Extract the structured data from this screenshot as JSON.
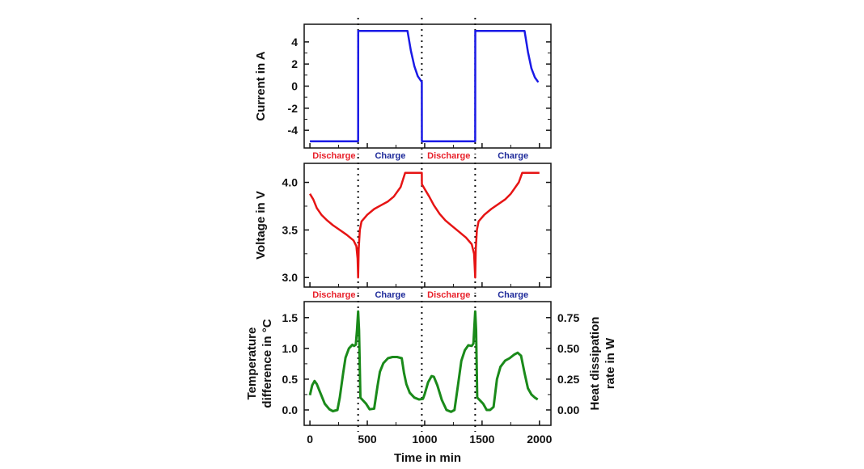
{
  "colors": {
    "current": "#1a1ae6",
    "voltage": "#e61414",
    "temperature": "#1a8a1a",
    "discharge": "#e8202a",
    "charge": "#1e2a9a",
    "axis": "#111111"
  },
  "chart_data": [
    {
      "type": "line",
      "id": "current",
      "ylabel": "Current in A",
      "xlim": [
        -50,
        2100
      ],
      "ylim": [
        -5.6,
        5.6
      ],
      "yticks": [
        -4,
        -2,
        0,
        2,
        4
      ],
      "ytick_labels": [
        "-4",
        "-2",
        "0",
        "2",
        "4"
      ],
      "x": [
        0,
        420,
        421,
        850,
        880,
        910,
        940,
        970,
        975,
        976,
        1440,
        1441,
        1870,
        1900,
        1930,
        1960,
        1990
      ],
      "y": [
        -5,
        -5,
        5,
        5,
        3.2,
        1.8,
        0.9,
        0.45,
        0.4,
        -5,
        -5,
        5,
        5,
        3.1,
        1.6,
        0.8,
        0.35
      ],
      "series_name": "Current"
    },
    {
      "type": "line",
      "id": "voltage",
      "ylabel": "Voltage in V",
      "xlim": [
        -50,
        2100
      ],
      "ylim": [
        2.9,
        4.2
      ],
      "yticks": [
        3.0,
        3.5,
        4.0
      ],
      "ytick_labels": [
        "3.0",
        "3.5",
        "4.0"
      ],
      "x": [
        0,
        30,
        60,
        100,
        150,
        200,
        260,
        320,
        380,
        405,
        415,
        420,
        425,
        435,
        450,
        500,
        560,
        620,
        680,
        730,
        790,
        830,
        975,
        976,
        1000,
        1040,
        1080,
        1130,
        1180,
        1240,
        1300,
        1360,
        1410,
        1430,
        1440,
        1445,
        1455,
        1470,
        1520,
        1580,
        1640,
        1700,
        1750,
        1820,
        1850,
        2000
      ],
      "y": [
        3.88,
        3.82,
        3.73,
        3.66,
        3.6,
        3.55,
        3.5,
        3.45,
        3.39,
        3.33,
        3.2,
        3.0,
        3.3,
        3.5,
        3.59,
        3.66,
        3.72,
        3.76,
        3.8,
        3.85,
        3.95,
        4.1,
        4.1,
        3.98,
        3.93,
        3.85,
        3.76,
        3.67,
        3.6,
        3.54,
        3.48,
        3.42,
        3.35,
        3.25,
        3.0,
        3.3,
        3.5,
        3.59,
        3.66,
        3.72,
        3.77,
        3.82,
        3.88,
        4.0,
        4.1,
        4.1
      ],
      "series_name": "Voltage"
    },
    {
      "type": "line",
      "id": "temperature",
      "ylabel": "Temperature difference in °C",
      "ylabel_lines": [
        "Temperature",
        "difference in °C"
      ],
      "y2label": "Heat dissipation rate in W",
      "y2label_lines": [
        "Heat dissipation",
        "rate in W"
      ],
      "xlabel": "Time in min",
      "xlim": [
        -50,
        2100
      ],
      "ylim": [
        -0.25,
        1.76
      ],
      "yticks": [
        0.0,
        0.5,
        1.0,
        1.5
      ],
      "ytick_labels": [
        "0.0",
        "0.5",
        "1.0",
        "1.5"
      ],
      "y2lim": [
        -0.125,
        0.88
      ],
      "y2ticks": [
        0.0,
        0.25,
        0.5,
        0.75
      ],
      "y2tick_labels": [
        "0.00",
        "0.25",
        "0.50",
        "0.75"
      ],
      "xticks": [
        0,
        500,
        1000,
        1500,
        2000
      ],
      "xtick_labels": [
        "0",
        "500",
        "1000",
        "1500",
        "2000"
      ],
      "x": [
        0,
        20,
        40,
        60,
        90,
        130,
        170,
        200,
        240,
        260,
        290,
        310,
        340,
        370,
        385,
        400,
        410,
        420,
        428,
        440,
        460,
        490,
        520,
        560,
        590,
        610,
        640,
        680,
        720,
        760,
        800,
        820,
        840,
        870,
        910,
        950,
        985,
        1000,
        1030,
        1060,
        1080,
        1110,
        1150,
        1190,
        1230,
        1260,
        1290,
        1320,
        1350,
        1380,
        1410,
        1425,
        1440,
        1448,
        1458,
        1480,
        1510,
        1540,
        1570,
        1600,
        1630,
        1660,
        1700,
        1740,
        1780,
        1810,
        1840,
        1870,
        1900,
        1930,
        1960,
        1985
      ],
      "y": [
        0.24,
        0.4,
        0.47,
        0.42,
        0.28,
        0.1,
        0.01,
        -0.02,
        0.0,
        0.2,
        0.6,
        0.85,
        1.0,
        1.06,
        1.04,
        1.06,
        1.3,
        1.6,
        1.3,
        0.2,
        0.16,
        0.1,
        0.01,
        0.02,
        0.4,
        0.62,
        0.76,
        0.84,
        0.86,
        0.86,
        0.84,
        0.6,
        0.42,
        0.28,
        0.2,
        0.17,
        0.18,
        0.26,
        0.45,
        0.55,
        0.54,
        0.4,
        0.16,
        0.0,
        -0.03,
        0.0,
        0.4,
        0.8,
        0.97,
        1.05,
        1.04,
        1.08,
        1.6,
        1.3,
        0.2,
        0.16,
        0.1,
        0.0,
        0.0,
        0.05,
        0.5,
        0.7,
        0.8,
        0.84,
        0.9,
        0.93,
        0.88,
        0.6,
        0.35,
        0.25,
        0.2,
        0.17
      ],
      "series_name": "Temperature difference"
    }
  ],
  "phase_boundaries": [
    420,
    975,
    1440
  ],
  "phase_labels_panel1": [
    {
      "label": "Discharge",
      "x": 210,
      "kind": "discharge"
    },
    {
      "label": "Charge",
      "x": 700,
      "kind": "charge"
    },
    {
      "label": "Discharge",
      "x": 1210,
      "kind": "discharge"
    },
    {
      "label": "Charge",
      "x": 1770,
      "kind": "charge"
    }
  ],
  "phase_labels_panel2": [
    {
      "label": "Discharge",
      "x": 210,
      "kind": "discharge"
    },
    {
      "label": "Charge",
      "x": 700,
      "kind": "charge"
    },
    {
      "label": "Discharge",
      "x": 1210,
      "kind": "discharge"
    },
    {
      "label": "Charge",
      "x": 1770,
      "kind": "charge"
    }
  ]
}
